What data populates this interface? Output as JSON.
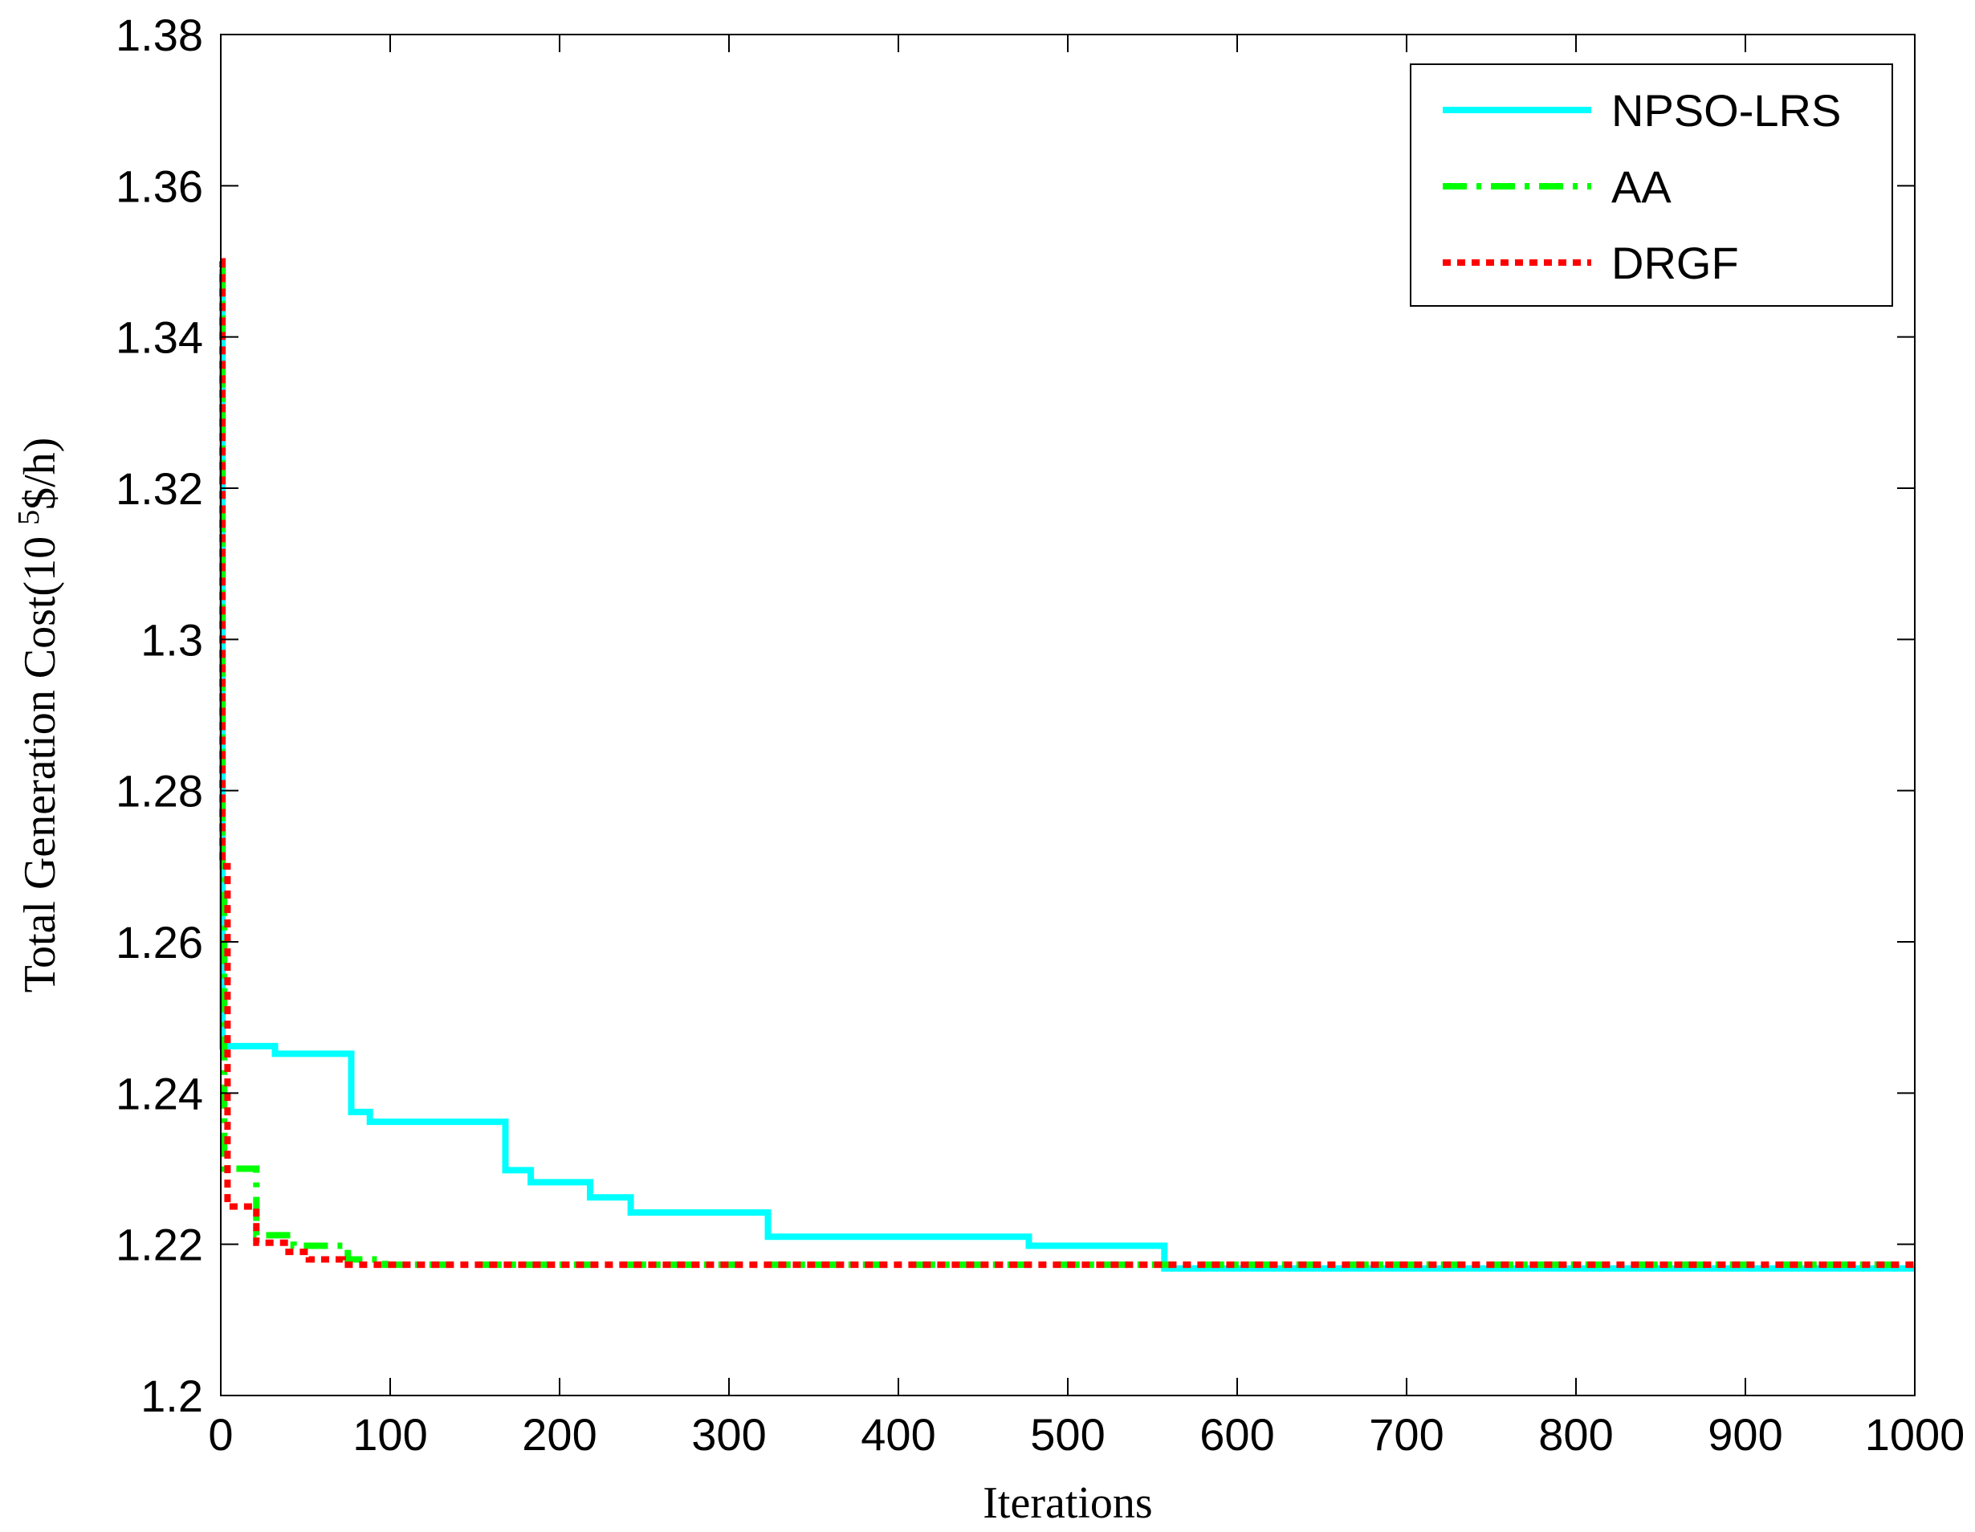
{
  "chart_data": {
    "type": "line",
    "xlabel": "Iterations",
    "ylabel": "Total Generation Cost(10 ",
    "ylabel_sup": "5",
    "ylabel_suffix": "$/h)",
    "xlim": [
      0,
      1000
    ],
    "ylim": [
      1.2,
      1.38
    ],
    "x_ticks": [
      0,
      100,
      200,
      300,
      400,
      500,
      600,
      700,
      800,
      900,
      1000
    ],
    "x_tick_labels": [
      "0",
      "100",
      "200",
      "300",
      "400",
      "500",
      "600",
      "700",
      "800",
      "900",
      "1000"
    ],
    "y_ticks": [
      1.2,
      1.22,
      1.24,
      1.26,
      1.28,
      1.3,
      1.32,
      1.34,
      1.36,
      1.38
    ],
    "y_tick_labels": [
      "1.2",
      "1.22",
      "1.24",
      "1.26",
      "1.28",
      "1.3",
      "1.32",
      "1.34",
      "1.36",
      "1.38"
    ],
    "grid": false,
    "legend_position": "top-right",
    "series": [
      {
        "name": "NPSO-LRS",
        "color": "#00ffff",
        "style": "solid",
        "x": [
          0,
          1,
          1,
          32,
          32,
          77,
          77,
          88,
          88,
          168,
          168,
          183,
          183,
          218,
          218,
          242,
          242,
          323,
          323,
          477,
          477,
          557,
          557,
          1000
        ],
        "y": [
          1.349,
          1.349,
          1.2462,
          1.2462,
          1.2452,
          1.2452,
          1.2375,
          1.2375,
          1.2362,
          1.2362,
          1.2298,
          1.2298,
          1.2282,
          1.2282,
          1.2262,
          1.2262,
          1.2242,
          1.2242,
          1.221,
          1.221,
          1.2198,
          1.2198,
          1.2168,
          1.2168
        ]
      },
      {
        "name": "AA",
        "color": "#00ff00",
        "style": "dashdot",
        "x": [
          0,
          1,
          1,
          2,
          2,
          4,
          4,
          21,
          21,
          43,
          43,
          75,
          75,
          97,
          97,
          1000
        ],
        "y": [
          1.349,
          1.349,
          1.27,
          1.27,
          1.23,
          1.23,
          1.23,
          1.23,
          1.2212,
          1.2212,
          1.2198,
          1.2198,
          1.218,
          1.218,
          1.2173,
          1.2173
        ]
      },
      {
        "name": "DRGF",
        "color": "#ff0000",
        "style": "dotted",
        "x": [
          0,
          1,
          1,
          4,
          4,
          21,
          21,
          40,
          40,
          52,
          52,
          72,
          72,
          1000
        ],
        "y": [
          1.35,
          1.35,
          1.27,
          1.27,
          1.225,
          1.225,
          1.2202,
          1.2202,
          1.219,
          1.219,
          1.218,
          1.218,
          1.2173,
          1.2173
        ]
      }
    ]
  }
}
